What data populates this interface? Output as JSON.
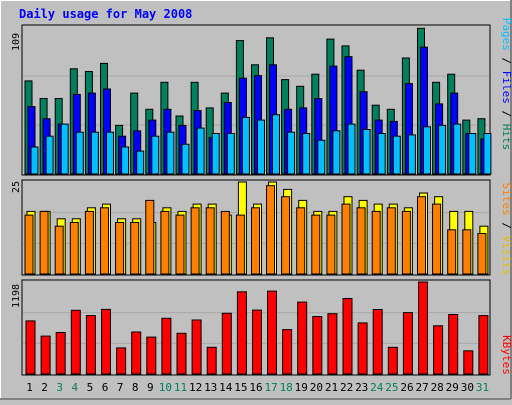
{
  "title": "Daily usage for May 2008",
  "colors": {
    "background": "#C0C0C0",
    "title": "#0000FF",
    "hits": "#00805C",
    "files": "#0000FF",
    "pages": "#00C0FF",
    "visits": "#FFFF00",
    "sites": "#FF8000",
    "kbytes": "#FF0000",
    "weekend_label": "#00805C",
    "weekday_label": "#000000"
  },
  "chart_data": [
    {
      "type": "bar",
      "ymax_label": "109",
      "legend": [
        "Pages",
        "Files",
        "Hits"
      ],
      "x": [
        "1",
        "2",
        "3",
        "4",
        "5",
        "6",
        "7",
        "8",
        "9",
        "10",
        "11",
        "12",
        "13",
        "14",
        "15",
        "16",
        "17",
        "18",
        "19",
        "20",
        "21",
        "22",
        "23",
        "24",
        "25",
        "26",
        "27",
        "28",
        "29",
        "30",
        "31"
      ],
      "weekend_days": [
        "3",
        "4",
        "10",
        "11",
        "17",
        "18",
        "24",
        "25",
        "31"
      ],
      "ylim": [
        0,
        109
      ],
      "series": [
        {
          "name": "Hits",
          "values": [
            69,
            56,
            56,
            78,
            76,
            82,
            36,
            60,
            48,
            68,
            43,
            68,
            49,
            60,
            99,
            81,
            101,
            70,
            65,
            74,
            100,
            95,
            77,
            51,
            48,
            86,
            108,
            68,
            74,
            40,
            41
          ]
        },
        {
          "name": "Files",
          "values": [
            50,
            41,
            37,
            59,
            60,
            63,
            28,
            32,
            40,
            48,
            36,
            47,
            27,
            53,
            71,
            73,
            81,
            48,
            49,
            56,
            80,
            87,
            61,
            40,
            39,
            67,
            94,
            52,
            60,
            30,
            26
          ]
        },
        {
          "name": "Pages",
          "values": [
            20,
            28,
            37,
            31,
            31,
            31,
            20,
            17,
            28,
            31,
            22,
            34,
            30,
            30,
            42,
            40,
            44,
            31,
            30,
            25,
            32,
            37,
            33,
            30,
            28,
            29,
            35,
            36,
            37,
            30,
            30
          ]
        }
      ]
    },
    {
      "type": "bar",
      "ymax_label": "25",
      "legend": [
        "Sites",
        "Visits"
      ],
      "ylim": [
        0,
        25
      ],
      "series": [
        {
          "name": "Visits",
          "values": [
            17,
            17,
            15,
            15,
            18,
            19,
            15,
            15,
            14,
            18,
            17,
            19,
            19,
            16,
            25,
            19,
            25,
            23,
            20,
            17,
            17,
            21,
            20,
            19,
            19,
            18,
            22,
            21,
            17,
            17,
            13
          ]
        },
        {
          "name": "Sites",
          "values": [
            16,
            17,
            13,
            14,
            17,
            18,
            14,
            14,
            20,
            17,
            16,
            18,
            18,
            17,
            16,
            18,
            24,
            21,
            18,
            16,
            16,
            19,
            18,
            17,
            18,
            17,
            21,
            19,
            12,
            12,
            11
          ]
        }
      ]
    },
    {
      "type": "bar",
      "ymax_label": "1198",
      "legend": [
        "KBytes"
      ],
      "ylim": [
        0,
        1198
      ],
      "series": [
        {
          "name": "KBytes",
          "values": [
            691,
            493,
            540,
            829,
            760,
            841,
            340,
            547,
            481,
            725,
            530,
            703,
            348,
            791,
            1070,
            832,
            1080,
            578,
            936,
            749,
            785,
            983,
            666,
            840,
            348,
            800,
            1198,
            628,
            775,
            302,
            761
          ]
        }
      ]
    }
  ]
}
